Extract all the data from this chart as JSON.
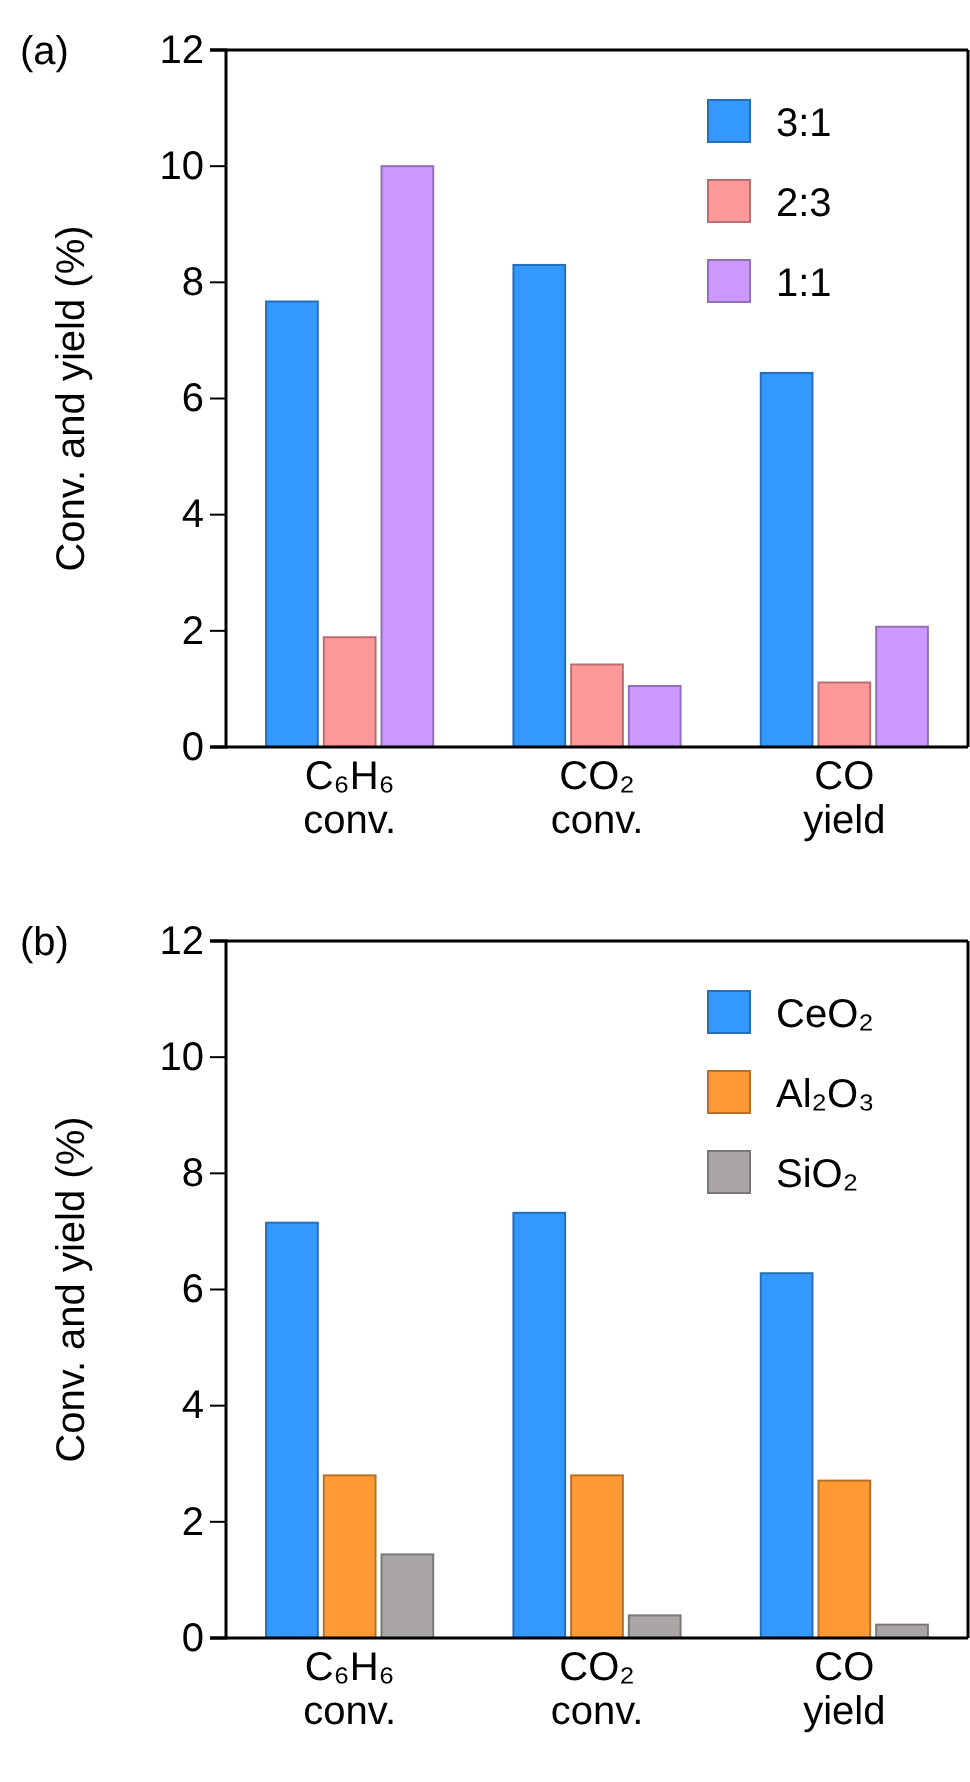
{
  "chart_data": [
    {
      "type": "bar",
      "title": "(a)",
      "ylabel": "Conv. and yield (%)",
      "categories": [
        "C₆H₆ conv.",
        "CO₂ conv.",
        "CO yield"
      ],
      "ylim": [
        0,
        12
      ],
      "yticks": [
        0,
        2,
        4,
        6,
        8,
        10,
        12
      ],
      "legend": "top right",
      "series": [
        {
          "name": "3:1",
          "color": "#3399ff",
          "values": [
            7.67,
            8.3,
            6.44
          ]
        },
        {
          "name": "2:3",
          "color": "#ff9999",
          "values": [
            1.89,
            1.42,
            1.11
          ]
        },
        {
          "name": "1:1",
          "color": "#cc99ff",
          "values": [
            10.0,
            1.05,
            2.07
          ]
        }
      ]
    },
    {
      "type": "bar",
      "title": "(b)",
      "ylabel": "Conv. and yield (%)",
      "categories": [
        "C₆H₆ conv.",
        "CO₂ conv.",
        "CO yield"
      ],
      "ylim": [
        0,
        12
      ],
      "yticks": [
        0,
        2,
        4,
        6,
        8,
        10,
        12
      ],
      "legend": "top right",
      "series": [
        {
          "name": "CeO₂",
          "color": "#3399ff",
          "values": [
            7.15,
            7.32,
            6.28
          ]
        },
        {
          "name": "Al₂O₃",
          "color": "#ff9933",
          "values": [
            2.8,
            2.8,
            2.71
          ]
        },
        {
          "name": "SiO₂",
          "color": "#aaa6a6",
          "values": [
            1.44,
            0.39,
            0.23
          ]
        }
      ]
    }
  ]
}
